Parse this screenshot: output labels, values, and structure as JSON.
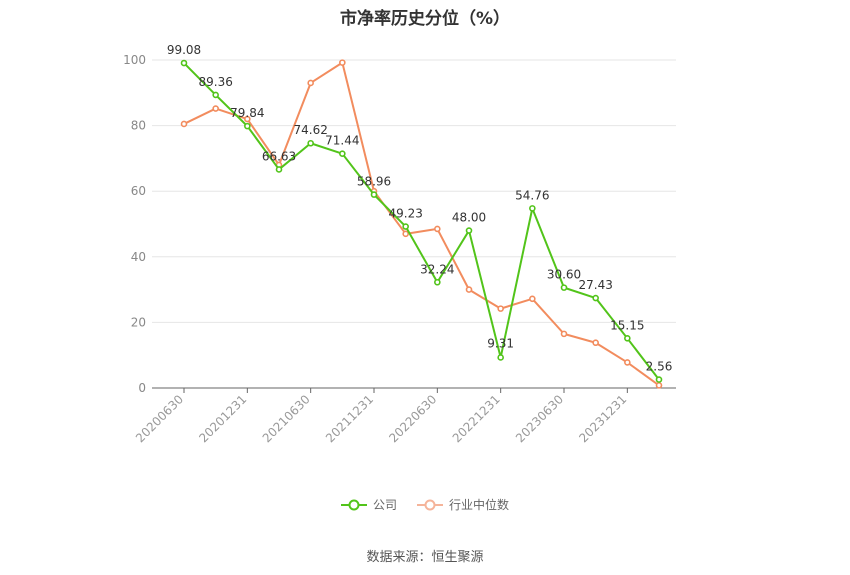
{
  "chart_data": {
    "type": "line",
    "title": "市净率历史分位（%）",
    "x": [
      "20200630",
      "20200930",
      "20201231",
      "20210331",
      "20210630",
      "20210930",
      "20211231",
      "20220331",
      "20220630",
      "20220930",
      "20221231",
      "20230331",
      "20230630",
      "20230930",
      "20231231",
      "20240331"
    ],
    "x_tick_labels": [
      "20200630",
      "20201231",
      "20210630",
      "20211231",
      "20220630",
      "20221231",
      "20230630",
      "20231231"
    ],
    "y_ticks": [
      0,
      20,
      40,
      60,
      80,
      100
    ],
    "ylim": [
      0,
      100
    ],
    "grid": true,
    "legend_position": "bottom",
    "series": [
      {
        "name": "公司",
        "color": "#52c41a",
        "values": [
          99.08,
          89.36,
          79.84,
          66.63,
          74.62,
          71.44,
          58.96,
          49.23,
          32.24,
          48.0,
          9.31,
          54.76,
          30.6,
          27.43,
          15.15,
          2.56
        ],
        "labels": [
          "99.08",
          "89.36",
          "79.84",
          "66.63",
          "74.62",
          "71.44",
          "58.96",
          "49.23",
          "32.24",
          "48.00",
          "9.31",
          "54.76",
          "30.60",
          "27.43",
          "15.15",
          "2.56"
        ]
      },
      {
        "name": "行业中位数",
        "color": "#f28c5e",
        "values": [
          80.5,
          85.2,
          82.0,
          68.0,
          93.0,
          99.2,
          60.0,
          47.0,
          48.5,
          30.0,
          24.2,
          27.2,
          16.5,
          13.8,
          7.8,
          0.8
        ]
      }
    ],
    "source": "数据来源：恒生聚源"
  }
}
